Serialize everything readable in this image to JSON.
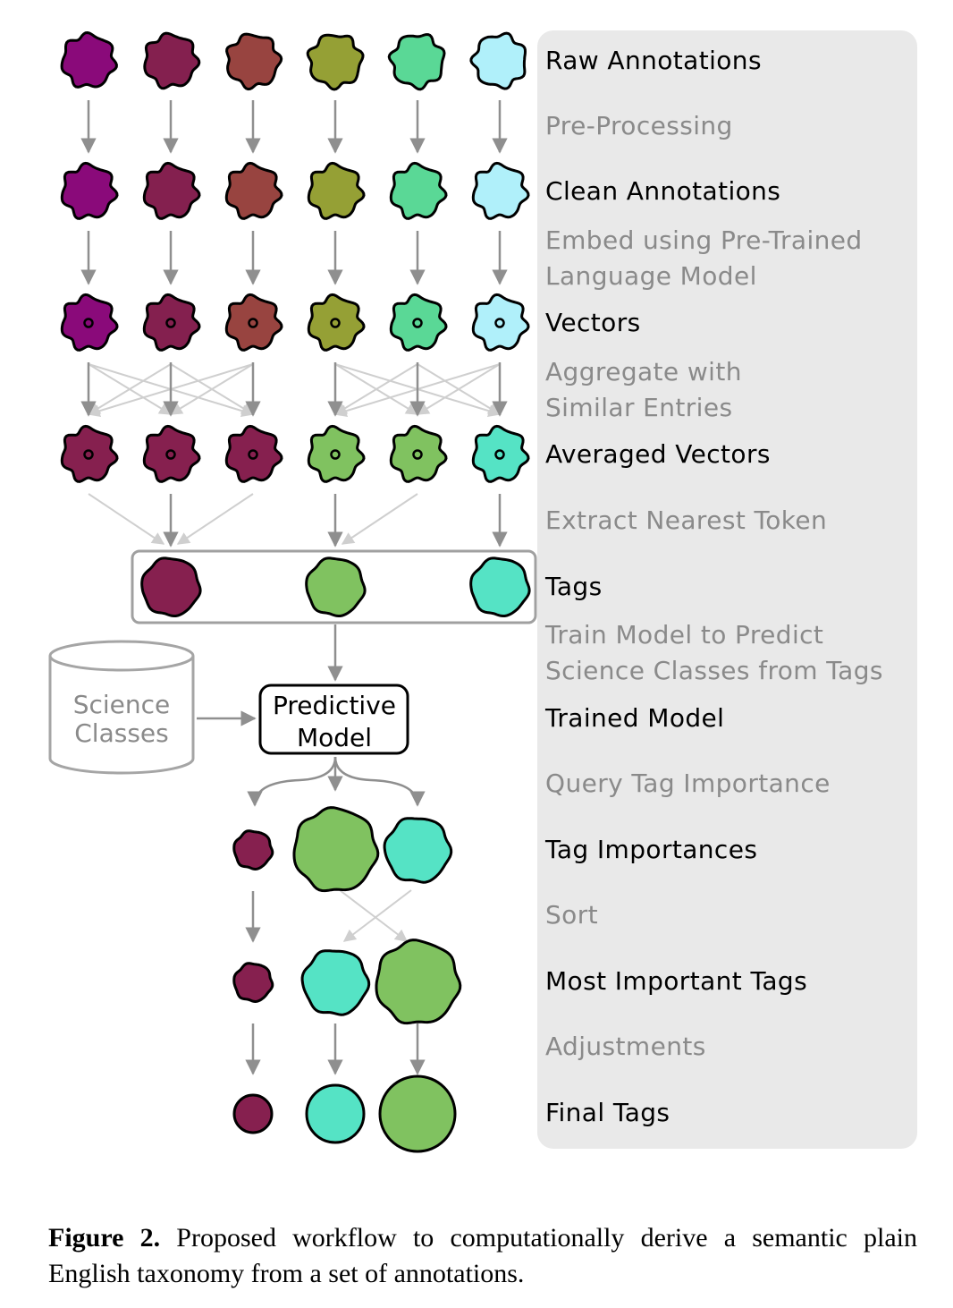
{
  "labels": {
    "raw": "Raw Annotations",
    "preprocessing": "Pre-Processing",
    "clean": "Clean Annotations",
    "embed_1": "Embed using Pre-Trained",
    "embed_2": "Language Model",
    "vectors": "Vectors",
    "aggregate_1": "Aggregate with",
    "aggregate_2": "Similar Entries",
    "averaged": "Averaged Vectors",
    "extract": "Extract Nearest Token",
    "tags": "Tags",
    "train_1": "Train Model to Predict",
    "train_2": "Science Classes from Tags",
    "trained": "Trained Model",
    "query": "Query Tag Importance",
    "importances": "Tag Importances",
    "sort": "Sort",
    "most_important": "Most Important Tags",
    "adjustments": "Adjustments",
    "final": "Final Tags"
  },
  "nodes": {
    "science_1": "Science",
    "science_2": "Classes",
    "model_1": "Predictive",
    "model_2": "Model"
  },
  "caption": {
    "label": "Figure 2.",
    "text": "Proposed workflow to computationally derive a semantic plain English taxonomy from a set of annotations."
  },
  "colors": {
    "raw": [
      "#8a0a7a",
      "#84204f",
      "#984440",
      "#95a035",
      "#5ad896",
      "#b0f0fa"
    ],
    "averaged": [
      "#86204f",
      "#86204f",
      "#86204f",
      "#80c260",
      "#80c260",
      "#55e3c5"
    ],
    "tags": [
      "#86204f",
      "#80c260",
      "#55e3c5"
    ],
    "panel": "#e9e9e9",
    "arrow": "#8f8f8f",
    "light_arrow": "#cfcfcf"
  }
}
